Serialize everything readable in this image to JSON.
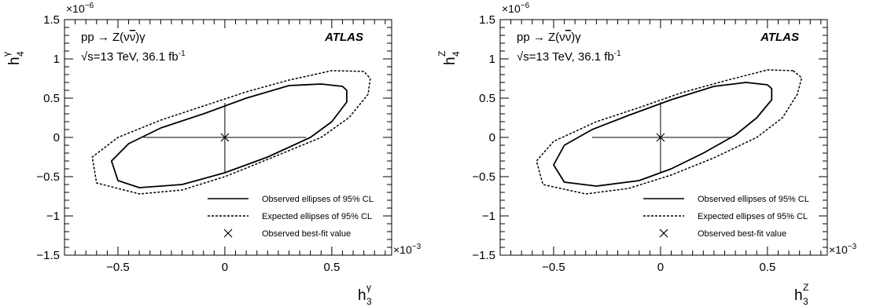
{
  "chart_data": [
    {
      "type": "contour",
      "panel": "gamma",
      "xlabel": {
        "base": "h",
        "sub": "3",
        "sup": "γ"
      },
      "ylabel": {
        "base": "h",
        "sub": "4",
        "sup": "γ"
      },
      "x_multiplier": "×10",
      "x_multiplier_exp": "−3",
      "y_multiplier": "×10",
      "y_multiplier_exp": "−6",
      "xlim": [
        -0.75,
        0.78
      ],
      "ylim": [
        -1.5,
        1.5
      ],
      "x_ticks": [
        -0.5,
        0,
        0.5
      ],
      "x_tick_labels": [
        "−0.5",
        "0",
        "0.5"
      ],
      "y_ticks": [
        -1.5,
        -1,
        -0.5,
        0,
        0.5,
        1,
        1.5
      ],
      "y_tick_labels": [
        "−1.5",
        "−1",
        "−0.5",
        "0",
        "0.5",
        "1",
        "1.5"
      ],
      "annotations": {
        "process_prefix": "pp → Z(ν",
        "process_nubar": "ν",
        "process_suffix": ")γ",
        "energy_root": "√",
        "energy_text": "s=13 TeV, 36.1 fb",
        "energy_exp": "-1",
        "experiment": "ATLAS"
      },
      "legend": {
        "placement": "bottom-right",
        "entries": [
          {
            "label": "Observed ellipses of 95% CL",
            "style": "solid"
          },
          {
            "label": "Expected ellipses of 95% CL",
            "style": "dashed"
          },
          {
            "label": "Observed best-fit value",
            "style": "cross"
          }
        ]
      },
      "best_fit": [
        0.0,
        0.0
      ],
      "observed_interval_h3": [
        -0.38,
        0.38
      ],
      "observed_interval_h4": [
        -0.44,
        0.44
      ],
      "observed_contour": [
        [
          0.55,
          0.65
        ],
        [
          0.45,
          0.68
        ],
        [
          0.3,
          0.66
        ],
        [
          0.1,
          0.5
        ],
        [
          -0.1,
          0.3
        ],
        [
          -0.3,
          0.12
        ],
        [
          -0.45,
          -0.08
        ],
        [
          -0.53,
          -0.3
        ],
        [
          -0.5,
          -0.55
        ],
        [
          -0.4,
          -0.64
        ],
        [
          -0.2,
          -0.6
        ],
        [
          0.0,
          -0.45
        ],
        [
          0.2,
          -0.25
        ],
        [
          0.4,
          0.0
        ],
        [
          0.5,
          0.2
        ],
        [
          0.57,
          0.45
        ],
        [
          0.57,
          0.6
        ]
      ],
      "expected_contour": [
        [
          0.65,
          0.84
        ],
        [
          0.5,
          0.85
        ],
        [
          0.3,
          0.73
        ],
        [
          0.1,
          0.58
        ],
        [
          -0.1,
          0.4
        ],
        [
          -0.3,
          0.22
        ],
        [
          -0.5,
          0.0
        ],
        [
          -0.62,
          -0.25
        ],
        [
          -0.6,
          -0.58
        ],
        [
          -0.4,
          -0.72
        ],
        [
          -0.2,
          -0.67
        ],
        [
          0.0,
          -0.5
        ],
        [
          0.2,
          -0.28
        ],
        [
          0.45,
          0.0
        ],
        [
          0.58,
          0.25
        ],
        [
          0.67,
          0.55
        ],
        [
          0.68,
          0.75
        ]
      ]
    },
    {
      "type": "contour",
      "panel": "Z",
      "xlabel": {
        "base": "h",
        "sub": "3",
        "sup": "Z"
      },
      "ylabel": {
        "base": "h",
        "sub": "4",
        "sup": "Z"
      },
      "x_multiplier": "×10",
      "x_multiplier_exp": "−3",
      "y_multiplier": "×10",
      "y_multiplier_exp": "−6",
      "xlim": [
        -0.75,
        0.78
      ],
      "ylim": [
        -1.5,
        1.5
      ],
      "x_ticks": [
        -0.5,
        0,
        0.5
      ],
      "x_tick_labels": [
        "−0.5",
        "0",
        "0.5"
      ],
      "y_ticks": [
        -1.5,
        -1,
        -0.5,
        0,
        0.5,
        1,
        1.5
      ],
      "y_tick_labels": [
        "−1.5",
        "−1",
        "−0.5",
        "0",
        "0.5",
        "1",
        "1.5"
      ],
      "annotations": {
        "process_prefix": "pp → Z(ν",
        "process_nubar": "ν",
        "process_suffix": ")γ",
        "energy_root": "√",
        "energy_text": "s=13 TeV, 36.1 fb",
        "energy_exp": "-1",
        "experiment": "ATLAS"
      },
      "legend": {
        "placement": "bottom-right",
        "entries": [
          {
            "label": "Observed ellipses of 95% CL",
            "style": "solid"
          },
          {
            "label": "Expected ellipses of 95% CL",
            "style": "dashed"
          },
          {
            "label": "Observed best-fit value",
            "style": "cross"
          }
        ]
      },
      "best_fit": [
        0.0,
        0.0
      ],
      "observed_interval_h3": [
        -0.32,
        0.33
      ],
      "observed_interval_h4": [
        -0.45,
        0.45
      ],
      "observed_contour": [
        [
          0.5,
          0.67
        ],
        [
          0.4,
          0.7
        ],
        [
          0.25,
          0.65
        ],
        [
          0.05,
          0.48
        ],
        [
          -0.15,
          0.28
        ],
        [
          -0.32,
          0.1
        ],
        [
          -0.45,
          -0.1
        ],
        [
          -0.5,
          -0.35
        ],
        [
          -0.45,
          -0.57
        ],
        [
          -0.3,
          -0.62
        ],
        [
          -0.1,
          -0.55
        ],
        [
          0.05,
          -0.4
        ],
        [
          0.2,
          -0.2
        ],
        [
          0.35,
          0.03
        ],
        [
          0.45,
          0.25
        ],
        [
          0.52,
          0.48
        ],
        [
          0.52,
          0.62
        ]
      ],
      "expected_contour": [
        [
          0.62,
          0.85
        ],
        [
          0.5,
          0.86
        ],
        [
          0.3,
          0.72
        ],
        [
          0.1,
          0.57
        ],
        [
          -0.1,
          0.38
        ],
        [
          -0.3,
          0.2
        ],
        [
          -0.5,
          -0.05
        ],
        [
          -0.58,
          -0.3
        ],
        [
          -0.55,
          -0.6
        ],
        [
          -0.35,
          -0.72
        ],
        [
          -0.15,
          -0.65
        ],
        [
          0.05,
          -0.48
        ],
        [
          0.25,
          -0.26
        ],
        [
          0.45,
          0.0
        ],
        [
          0.57,
          0.25
        ],
        [
          0.64,
          0.55
        ],
        [
          0.66,
          0.76
        ]
      ]
    }
  ]
}
